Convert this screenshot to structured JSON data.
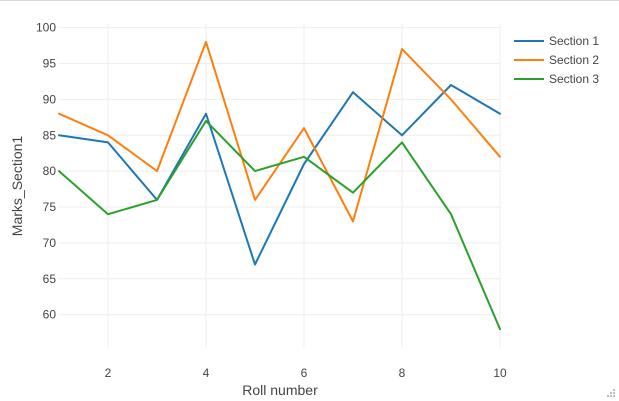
{
  "chart_data": {
    "type": "line",
    "xlabel": "Roll  number",
    "ylabel": "Marks_Section1",
    "x": [
      1,
      2,
      3,
      4,
      5,
      6,
      7,
      8,
      9,
      10
    ],
    "xlim": [
      1,
      10
    ],
    "ylim": [
      55.5,
      100.5
    ],
    "xticks": [
      2,
      4,
      6,
      8,
      10
    ],
    "yticks": [
      60,
      65,
      70,
      75,
      80,
      85,
      90,
      95,
      100
    ],
    "grid": true,
    "legend_position": "top-right",
    "series": [
      {
        "name": "Section 1",
        "color": "#1f77b4",
        "values": [
          85,
          84,
          76,
          88,
          67,
          81,
          91,
          85,
          92,
          88
        ]
      },
      {
        "name": "Section 2",
        "color": "#ff7f0e",
        "values": [
          88,
          85,
          80,
          98,
          76,
          86,
          73,
          97,
          90,
          82
        ]
      },
      {
        "name": "Section 3",
        "color": "#2ca02c",
        "values": [
          80,
          74,
          76,
          87,
          80,
          82,
          77,
          84,
          74,
          58
        ]
      }
    ]
  }
}
